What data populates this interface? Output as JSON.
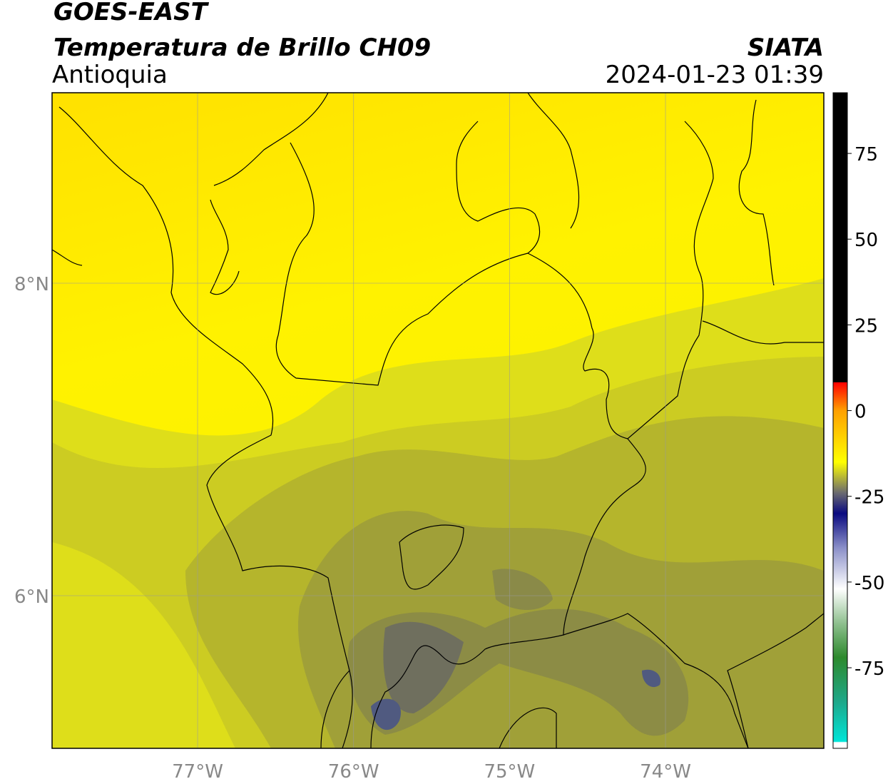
{
  "header": {
    "line1": "GOES-EAST",
    "line2": "Temperatura de Brillo CH09",
    "region": "Antioquia",
    "source": "SIATA",
    "datetime": "2024-01-23 01:39"
  },
  "map": {
    "lon_range": [
      -77.933,
      -72.985
    ],
    "lat_range": [
      5.023,
      9.219
    ],
    "lon_ticks": [
      {
        "value": -77,
        "label": "77°W"
      },
      {
        "value": -76,
        "label": "76°W"
      },
      {
        "value": -75,
        "label": "75°W"
      },
      {
        "value": -74,
        "label": "74°W"
      }
    ],
    "lat_ticks": [
      {
        "value": 8,
        "label": "8°N"
      },
      {
        "value": 6,
        "label": "6°N"
      }
    ]
  },
  "colorbar": {
    "range": [
      -98.5,
      92.7
    ],
    "ticks": [
      75,
      50,
      25,
      0,
      -25,
      -50,
      -75
    ],
    "colormap": [
      {
        "value": -98.5,
        "color": "#ffffff"
      },
      {
        "value": -96.8,
        "color": "#ffffff"
      },
      {
        "value": -96.5,
        "color": "#00e5d8"
      },
      {
        "value": -85,
        "color": "#1ea88a"
      },
      {
        "value": -72,
        "color": "#2d8a2d"
      },
      {
        "value": -62,
        "color": "#8fc08f"
      },
      {
        "value": -52,
        "color": "#ffffff"
      },
      {
        "value": -40,
        "color": "#8a8fc8"
      },
      {
        "value": -30,
        "color": "#0a0a80"
      },
      {
        "value": -24,
        "color": "#6a6a70"
      },
      {
        "value": -15,
        "color": "#ffff00"
      },
      {
        "value": 0,
        "color": "#ffa000"
      },
      {
        "value": 8.2,
        "color": "#ff0000"
      },
      {
        "value": 8.3,
        "color": "#000000"
      },
      {
        "value": 92.7,
        "color": "#000000"
      }
    ]
  }
}
